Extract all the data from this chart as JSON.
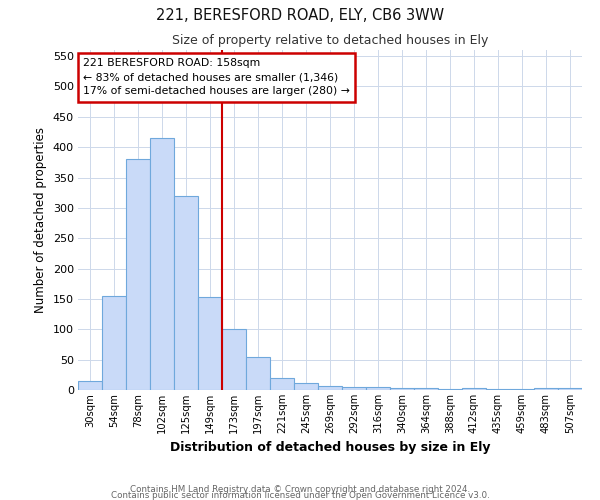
{
  "title_line1": "221, BERESFORD ROAD, ELY, CB6 3WW",
  "title_line2": "Size of property relative to detached houses in Ely",
  "xlabel": "Distribution of detached houses by size in Ely",
  "ylabel": "Number of detached properties",
  "bins": [
    "30sqm",
    "54sqm",
    "78sqm",
    "102sqm",
    "125sqm",
    "149sqm",
    "173sqm",
    "197sqm",
    "221sqm",
    "245sqm",
    "269sqm",
    "292sqm",
    "316sqm",
    "340sqm",
    "364sqm",
    "388sqm",
    "412sqm",
    "435sqm",
    "459sqm",
    "483sqm",
    "507sqm"
  ],
  "values": [
    15,
    155,
    380,
    415,
    320,
    153,
    100,
    55,
    20,
    12,
    6,
    5,
    5,
    3,
    3,
    2,
    3,
    2,
    2,
    3,
    3
  ],
  "bar_color": "#c9daf8",
  "bar_edge_color": "#6fa8dc",
  "red_line_x": 5.5,
  "annotation_title": "221 BERESFORD ROAD: 158sqm",
  "annotation_line1": "← 83% of detached houses are smaller (1,346)",
  "annotation_line2": "17% of semi-detached houses are larger (280) →",
  "annotation_box_color": "#ffffff",
  "annotation_box_edge": "#cc0000",
  "ylim": [
    0,
    560
  ],
  "yticks": [
    0,
    50,
    100,
    150,
    200,
    250,
    300,
    350,
    400,
    450,
    500,
    550
  ],
  "footer_line1": "Contains HM Land Registry data © Crown copyright and database right 2024.",
  "footer_line2": "Contains public sector information licensed under the Open Government Licence v3.0.",
  "bg_color": "#ffffff",
  "grid_color": "#cdd8ea"
}
